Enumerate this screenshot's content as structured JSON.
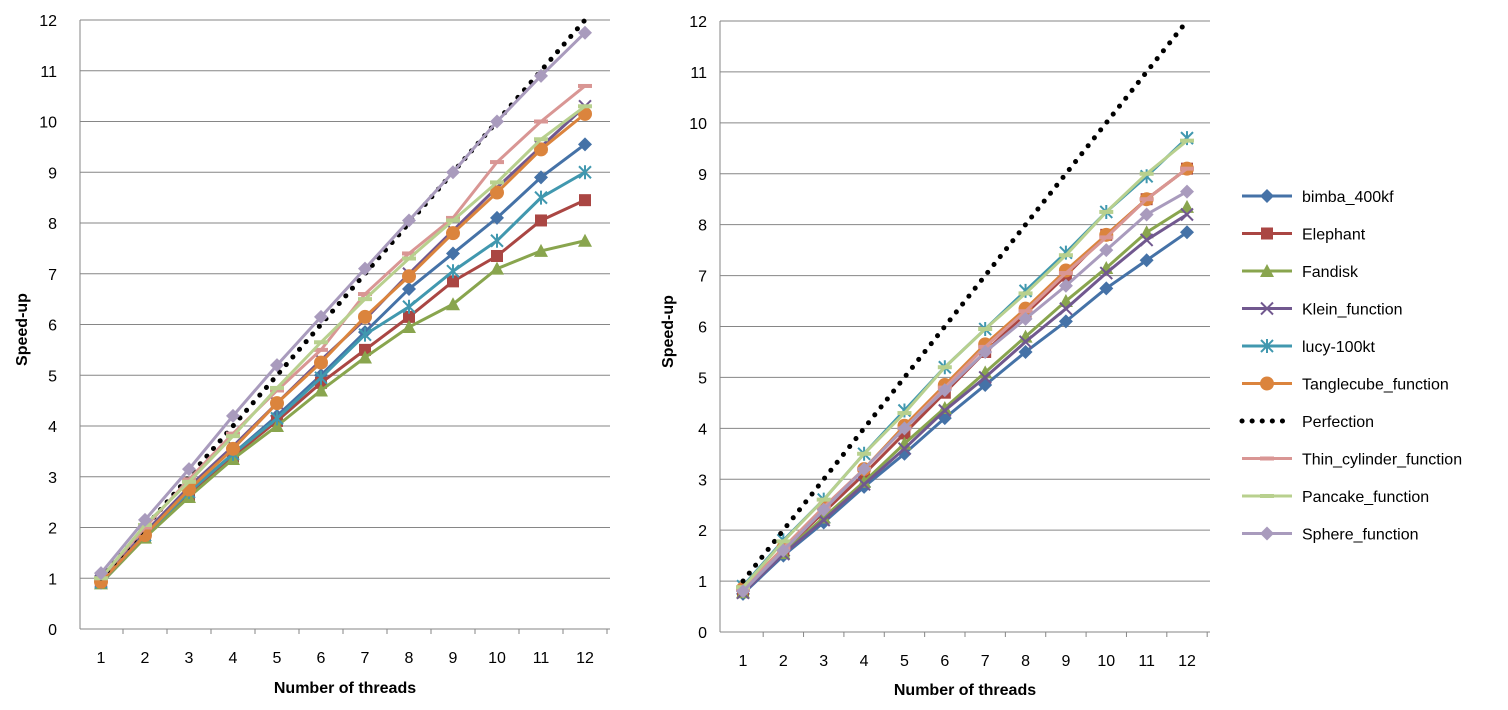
{
  "chart_data": [
    {
      "type": "line",
      "xlabel": "Number of threads",
      "ylabel": "Speed-up",
      "x": [
        1,
        2,
        3,
        4,
        5,
        6,
        7,
        8,
        9,
        10,
        11,
        12
      ],
      "ylim": [
        0,
        12
      ],
      "yticks": [
        0,
        1,
        2,
        3,
        4,
        5,
        6,
        7,
        8,
        9,
        10,
        11,
        12
      ],
      "grid": true,
      "legend": "none",
      "series": [
        {
          "name": "bimba_400kf",
          "color": "#4572A7",
          "marker": "diamond",
          "values": [
            0.95,
            1.85,
            2.7,
            3.45,
            4.2,
            5.0,
            5.85,
            6.7,
            7.4,
            8.1,
            8.9,
            9.55
          ]
        },
        {
          "name": "Elephant",
          "color": "#AA4643",
          "marker": "square",
          "values": [
            0.92,
            1.82,
            2.62,
            3.4,
            4.1,
            4.85,
            5.5,
            6.15,
            6.85,
            7.35,
            8.05,
            8.45
          ]
        },
        {
          "name": "Fandisk",
          "color": "#89A54E",
          "marker": "triangle",
          "values": [
            0.9,
            1.8,
            2.6,
            3.35,
            4.0,
            4.7,
            5.35,
            5.95,
            6.4,
            7.1,
            7.45,
            7.65
          ]
        },
        {
          "name": "Klein_function",
          "color": "#71588F",
          "marker": "x",
          "values": [
            0.95,
            1.9,
            2.8,
            3.6,
            4.45,
            5.3,
            6.1,
            7.0,
            7.85,
            8.7,
            9.5,
            10.3
          ]
        },
        {
          "name": "lucy-100kt",
          "color": "#4198AF",
          "marker": "star",
          "values": [
            0.92,
            1.85,
            2.7,
            3.45,
            4.15,
            4.95,
            5.8,
            6.35,
            7.05,
            7.65,
            8.5,
            9.0
          ]
        },
        {
          "name": "Tanglecube_function",
          "color": "#DB843D",
          "marker": "circle",
          "values": [
            0.93,
            1.85,
            2.75,
            3.55,
            4.45,
            5.25,
            6.15,
            6.95,
            7.8,
            8.6,
            9.45,
            10.15
          ]
        },
        {
          "name": "Perfection",
          "color": "#000000",
          "marker": "none",
          "dotted": true,
          "values": [
            1,
            2,
            3,
            4,
            5,
            6,
            7,
            8,
            9,
            10,
            11,
            12
          ]
        },
        {
          "name": "Thin_cylinder_function",
          "color": "#D99694",
          "marker": "dash",
          "values": [
            1.0,
            2.0,
            2.95,
            3.85,
            4.7,
            5.5,
            6.6,
            7.4,
            8.1,
            9.2,
            10.0,
            10.7
          ]
        },
        {
          "name": "Pancake_function",
          "color": "#B8D08E",
          "marker": "dash",
          "values": [
            1.0,
            2.05,
            2.9,
            3.8,
            4.75,
            5.65,
            6.5,
            7.3,
            8.05,
            8.8,
            9.65,
            10.3
          ]
        },
        {
          "name": "Sphere_function",
          "color": "#A99BBD",
          "marker": "diamond",
          "values": [
            1.1,
            2.15,
            3.15,
            4.2,
            5.2,
            6.15,
            7.1,
            8.05,
            9.0,
            10.0,
            10.9,
            11.75
          ]
        }
      ]
    },
    {
      "type": "line",
      "xlabel": "Number of threads",
      "ylabel": "Speed-up",
      "x": [
        1,
        2,
        3,
        4,
        5,
        6,
        7,
        8,
        9,
        10,
        11,
        12
      ],
      "ylim": [
        0,
        12
      ],
      "yticks": [
        0,
        1,
        2,
        3,
        4,
        5,
        6,
        7,
        8,
        9,
        10,
        11,
        12
      ],
      "grid": true,
      "legend": "right",
      "series": [
        {
          "name": "bimba_400kf",
          "color": "#4572A7",
          "marker": "diamond",
          "values": [
            0.75,
            1.5,
            2.15,
            2.85,
            3.5,
            4.2,
            4.85,
            5.5,
            6.1,
            6.75,
            7.3,
            7.85
          ]
        },
        {
          "name": "Elephant",
          "color": "#AA4643",
          "marker": "square",
          "values": [
            0.8,
            1.6,
            2.35,
            3.1,
            3.9,
            4.7,
            5.5,
            6.25,
            7.0,
            7.8,
            8.5,
            9.1
          ]
        },
        {
          "name": "Fandisk",
          "color": "#89A54E",
          "marker": "triangle",
          "values": [
            0.78,
            1.55,
            2.25,
            2.95,
            3.7,
            4.4,
            5.1,
            5.8,
            6.5,
            7.15,
            7.85,
            8.35
          ]
        },
        {
          "name": "Klein_function",
          "color": "#71588F",
          "marker": "x",
          "values": [
            0.77,
            1.53,
            2.2,
            2.9,
            3.6,
            4.35,
            5.0,
            5.7,
            6.35,
            7.05,
            7.7,
            8.2
          ]
        },
        {
          "name": "lucy-100kt",
          "color": "#4198AF",
          "marker": "star",
          "values": [
            0.9,
            1.8,
            2.6,
            3.5,
            4.35,
            5.2,
            5.95,
            6.7,
            7.45,
            8.25,
            8.95,
            9.7
          ]
        },
        {
          "name": "Tanglecube_function",
          "color": "#DB843D",
          "marker": "circle",
          "values": [
            0.85,
            1.65,
            2.45,
            3.2,
            4.05,
            4.85,
            5.65,
            6.35,
            7.1,
            7.8,
            8.5,
            9.1
          ]
        },
        {
          "name": "Perfection",
          "color": "#000000",
          "marker": "none",
          "dotted": true,
          "values": [
            1,
            2,
            3,
            4,
            5,
            6,
            7,
            8,
            9,
            10,
            11,
            12
          ]
        },
        {
          "name": "Thin_cylinder_function",
          "color": "#D99694",
          "marker": "dash",
          "values": [
            0.83,
            1.65,
            2.45,
            3.2,
            4.0,
            4.8,
            5.6,
            6.3,
            7.05,
            7.75,
            8.5,
            9.1
          ]
        },
        {
          "name": "Pancake_function",
          "color": "#B8D08E",
          "marker": "dash",
          "values": [
            0.88,
            1.78,
            2.6,
            3.5,
            4.3,
            5.2,
            5.95,
            6.65,
            7.4,
            8.25,
            9.0,
            9.65
          ]
        },
        {
          "name": "Sphere_function",
          "color": "#A99BBD",
          "marker": "diamond",
          "values": [
            0.8,
            1.6,
            2.4,
            3.2,
            4.0,
            4.75,
            5.5,
            6.15,
            6.8,
            7.5,
            8.2,
            8.65
          ]
        }
      ]
    }
  ]
}
